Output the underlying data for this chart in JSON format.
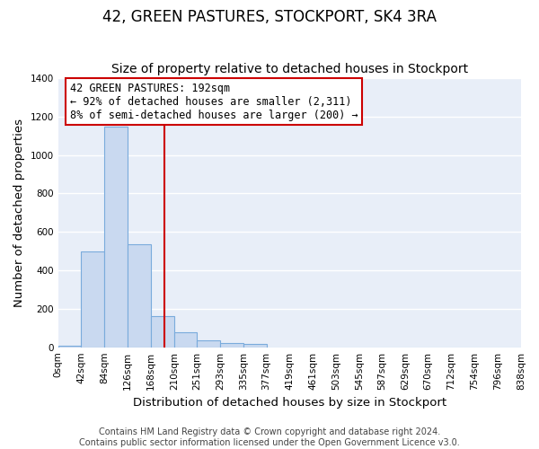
{
  "title": "42, GREEN PASTURES, STOCKPORT, SK4 3RA",
  "subtitle": "Size of property relative to detached houses in Stockport",
  "xlabel": "Distribution of detached houses by size in Stockport",
  "ylabel": "Number of detached properties",
  "bin_edges": [
    0,
    42,
    84,
    126,
    168,
    210,
    251,
    293,
    335,
    377,
    419,
    461,
    503,
    545,
    587,
    629,
    670,
    712,
    754,
    796,
    838
  ],
  "bin_counts": [
    10,
    500,
    1150,
    535,
    160,
    80,
    35,
    20,
    15,
    0,
    0,
    0,
    0,
    0,
    0,
    0,
    0,
    0,
    0,
    0
  ],
  "bar_facecolor": "#c9d9f0",
  "bar_edgecolor": "#7aabdc",
  "vline_x": 192,
  "vline_color": "#cc0000",
  "annotation_title": "42 GREEN PASTURES: 192sqm",
  "annotation_line1": "← 92% of detached houses are smaller (2,311)",
  "annotation_line2": "8% of semi-detached houses are larger (200) →",
  "annotation_box_edgecolor": "#cc0000",
  "ylim": [
    0,
    1400
  ],
  "yticks": [
    0,
    200,
    400,
    600,
    800,
    1000,
    1200,
    1400
  ],
  "xtick_labels": [
    "0sqm",
    "42sqm",
    "84sqm",
    "126sqm",
    "168sqm",
    "210sqm",
    "251sqm",
    "293sqm",
    "335sqm",
    "377sqm",
    "419sqm",
    "461sqm",
    "503sqm",
    "545sqm",
    "587sqm",
    "629sqm",
    "670sqm",
    "712sqm",
    "754sqm",
    "796sqm",
    "838sqm"
  ],
  "footer_line1": "Contains HM Land Registry data © Crown copyright and database right 2024.",
  "footer_line2": "Contains public sector information licensed under the Open Government Licence v3.0.",
  "plot_bg_color": "#e8eef8",
  "fig_bg_color": "#ffffff",
  "grid_color": "#ffffff",
  "title_fontsize": 12,
  "subtitle_fontsize": 10,
  "axis_label_fontsize": 9.5,
  "tick_fontsize": 7.5,
  "footer_fontsize": 7,
  "annotation_fontsize": 8.5
}
